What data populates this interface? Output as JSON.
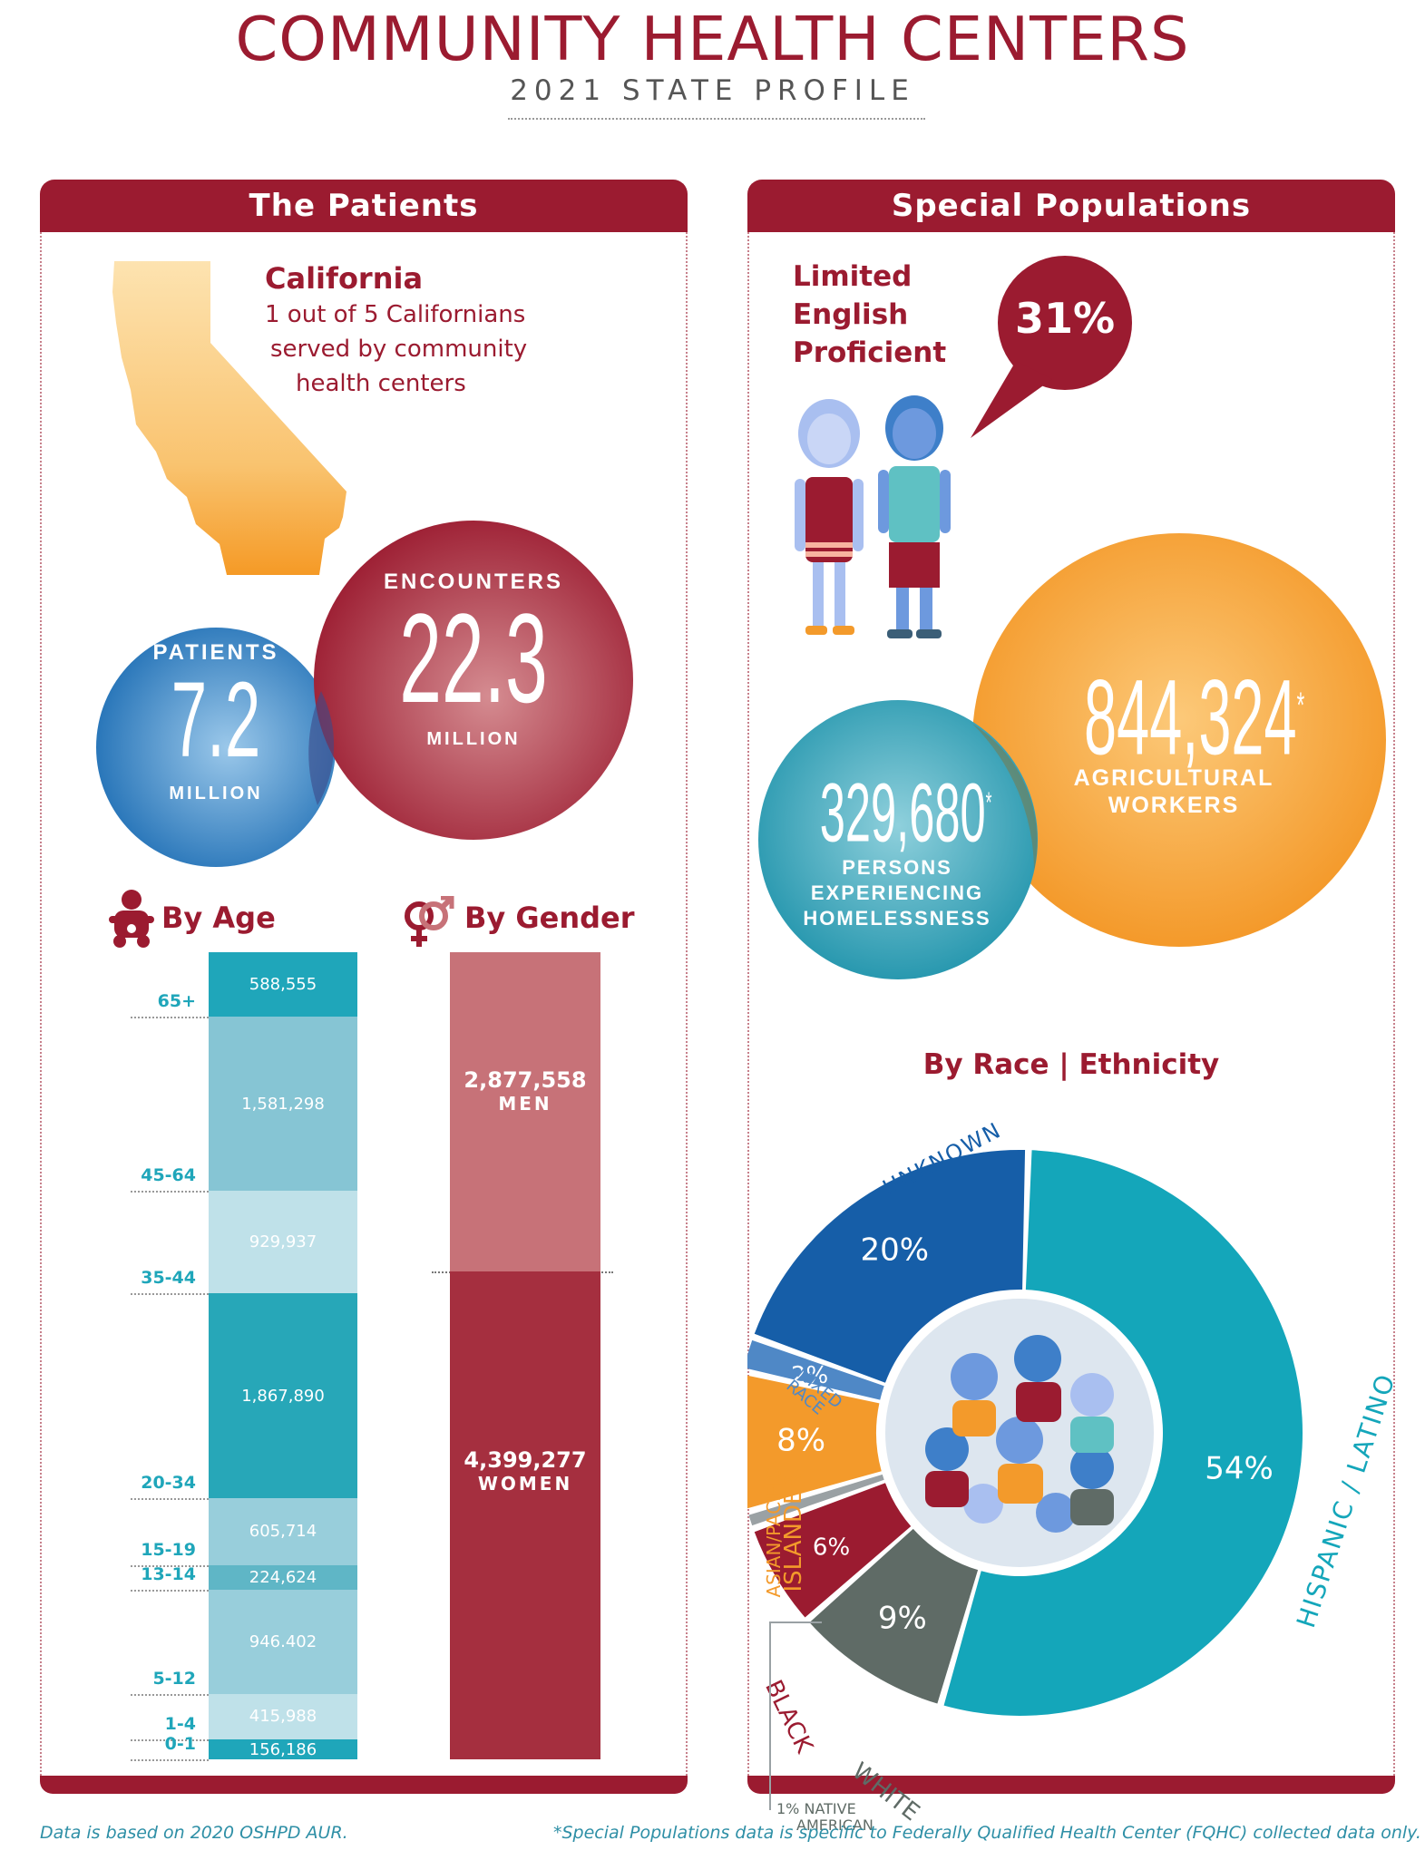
{
  "header": {
    "title": "COMMUNITY HEALTH CENTERS",
    "subtitle": "2021 STATE PROFILE"
  },
  "patients_panel": {
    "heading": "The Patients",
    "state_name": "California",
    "state_line1": "1 out of 5 Californians",
    "state_line2": "served by community",
    "state_line3": "health centers",
    "patients": {
      "label": "PATIENTS",
      "value": "7.2",
      "unit": "MILLION"
    },
    "encounters": {
      "label": "ENCOUNTERS",
      "value": "22.3",
      "unit": "MILLION"
    },
    "by_age_title": "By Age",
    "by_gender_title": "By Gender",
    "age_groups": [
      {
        "label": "65+",
        "value": "588,555",
        "count": 588555
      },
      {
        "label": "45-64",
        "value": "1,581,298",
        "count": 1581298
      },
      {
        "label": "35-44",
        "value": "929,937",
        "count": 929937
      },
      {
        "label": "20-34",
        "value": "1,867,890",
        "count": 1867890
      },
      {
        "label": "15-19",
        "value": "605,714",
        "count": 605714
      },
      {
        "label": "13-14",
        "value": "224,624",
        "count": 224624
      },
      {
        "label": "5-12",
        "value": "946.402",
        "count": 946402
      },
      {
        "label": "1-4",
        "value": "415,988",
        "count": 415988
      },
      {
        "label": "0-1",
        "value": "156,186",
        "count": 156186
      }
    ],
    "age_colors": [
      "#1fa6ba",
      "#86c5d4",
      "#bfe1e9",
      "#27a7b8",
      "#98cedb",
      "#5fb6c6",
      "#98cedb",
      "#bfe1e9",
      "#1fa6ba"
    ],
    "gender": [
      {
        "value": "2,877,558",
        "label": "MEN",
        "count": 2877558,
        "color": "#c77278"
      },
      {
        "value": "4,399,277",
        "label": "WOMEN",
        "count": 4399277,
        "color": "#a52f3f"
      }
    ]
  },
  "special_panel": {
    "heading": "Special Populations",
    "lep_line1": "Limited",
    "lep_line2": "English",
    "lep_line3": "Proficient",
    "lep_value": "31%",
    "agricultural": {
      "value": "844,324",
      "mark": "*",
      "line1": "AGRICULTURAL",
      "line2": "WORKERS"
    },
    "homeless": {
      "value": "329,680",
      "mark": "*",
      "line1": "PERSONS",
      "line2": "EXPERIENCING",
      "line3": "HOMELESSNESS"
    },
    "race_title": "By Race | Ethnicity",
    "race_labels": {
      "unknown": "UNKNOWN",
      "mixed1": "MIXED",
      "mixed2": "RACE",
      "asian1": "ASIAN/PACIFIC",
      "asian2": "ISLANDER",
      "black": "BLACK",
      "white": "WHITE",
      "native1": "1% NATIVE",
      "native2": "AMERICAN",
      "hispanic": "HISPANIC / LATINO"
    }
  },
  "chart_data": {
    "type": "pie",
    "title": "By Race | Ethnicity",
    "slices": [
      {
        "name": "HISPANIC / LATINO",
        "value": 54,
        "label": "54%",
        "color": "#14a6ba"
      },
      {
        "name": "WHITE",
        "value": 9,
        "label": "9%",
        "color": "#5f6b66"
      },
      {
        "name": "BLACK",
        "value": 6,
        "label": "6%",
        "color": "#9b1b30"
      },
      {
        "name": "NATIVE AMERICAN",
        "value": 1,
        "label": "1%",
        "color": "#9aa1a4"
      },
      {
        "name": "ASIAN/PACIFIC ISLANDER",
        "value": 8,
        "label": "8%",
        "color": "#f39a2b"
      },
      {
        "name": "MIXED RACE",
        "value": 2,
        "label": "2%",
        "color": "#4f88c6"
      },
      {
        "name": "UNKNOWN",
        "value": 20,
        "label": "20%",
        "color": "#165ea8"
      }
    ]
  },
  "footer": {
    "left": "Data is based on 2020 OSHPD AUR.",
    "right": "*Special Populations data is specific to Federally Qualified Health Center (FQHC) collected data only."
  }
}
